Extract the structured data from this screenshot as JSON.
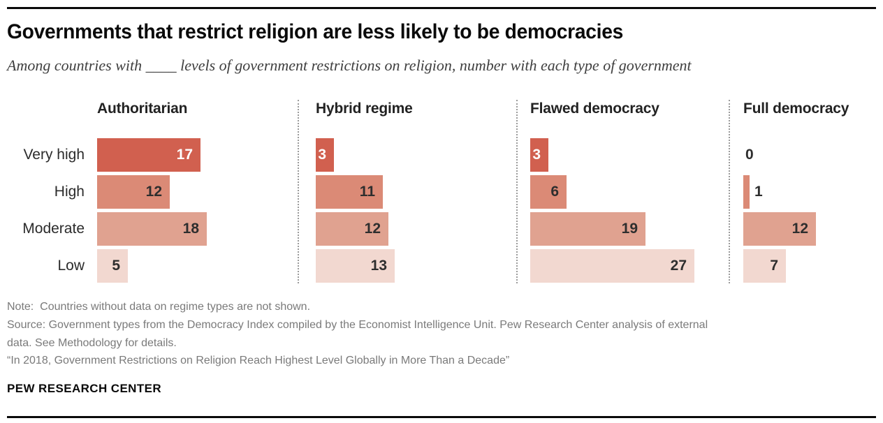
{
  "page": {
    "background": "#ffffff",
    "rule_color": "#000000"
  },
  "header": {
    "title": "Governments that restrict religion are less likely to be democracies",
    "subtitle": "Among countries with ____ levels of government restrictions on religion, number with each type of government"
  },
  "chart_data": {
    "type": "bar",
    "orientation": "horizontal",
    "title": "Governments that restrict religion are less likely to be democracies",
    "subtitle": "Among countries with ____ levels of government restrictions on religion, number with each type of government",
    "categories": [
      "Very high",
      "High",
      "Moderate",
      "Low"
    ],
    "panels": [
      {
        "label": "Authoritarian",
        "values": [
          17,
          12,
          18,
          5
        ]
      },
      {
        "label": "Hybrid regime",
        "values": [
          3,
          11,
          12,
          13
        ]
      },
      {
        "label": "Flawed democracy",
        "values": [
          3,
          6,
          19,
          27
        ]
      },
      {
        "label": "Full democracy",
        "values": [
          0,
          1,
          12,
          7
        ]
      }
    ],
    "value_range": [
      0,
      27
    ],
    "bar_colors_by_row": [
      "#d1604f",
      "#db8a76",
      "#e0a290",
      "#f2d8d0"
    ],
    "value_label_color_inside_top_row": "#ffffff",
    "value_label_color_default": "#2e2e2e",
    "grid": false,
    "legend": false,
    "panel_separator_style": "dotted"
  },
  "footer": {
    "note": "Note:  Countries without data on regime types are not shown.",
    "source_lines": [
      "Source: Government types from the Democracy Index compiled by the Economist Intelligence Unit. Pew Research Center analysis of external",
      "data. See Methodology for details."
    ],
    "quote": "“In 2018, Government Restrictions on Religion Reach Highest Level Globally in More Than a Decade”",
    "branding": "PEW RESEARCH CENTER"
  }
}
